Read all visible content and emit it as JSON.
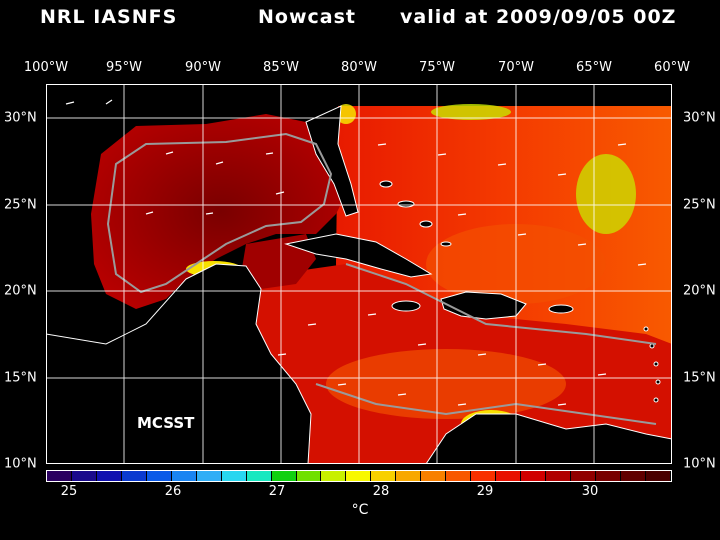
{
  "header": {
    "source": "NRL IASNFS",
    "product": "Nowcast",
    "valid": "valid at 2009/09/05 00Z"
  },
  "map": {
    "longitude_labels": [
      "100°W",
      "95°W",
      "90°W",
      "85°W",
      "80°W",
      "75°W",
      "70°W",
      "65°W",
      "60°W"
    ],
    "latitude_labels": [
      "30°N",
      "25°N",
      "20°N",
      "15°N",
      "10°N"
    ],
    "dataset_label": "MCSST",
    "colors": {
      "land": "#000000",
      "grid": "#ffffff",
      "contour": "#9a9a9a",
      "coast": "#ffffff"
    }
  },
  "colorbar": {
    "ticks": [
      "25",
      "26",
      "27",
      "28",
      "29",
      "30"
    ],
    "unit": "°C",
    "colors": [
      "#2a0060",
      "#1a0a8c",
      "#1010b0",
      "#0a3ad0",
      "#0a5ae8",
      "#1a84f2",
      "#30aef6",
      "#28d6f0",
      "#18e8c0",
      "#10d010",
      "#70e000",
      "#c8f000",
      "#f8f800",
      "#f8d000",
      "#f8a800",
      "#f88000",
      "#f85800",
      "#f83000",
      "#e81000",
      "#d00000",
      "#b00000",
      "#900000",
      "#780000",
      "#600000",
      "#4a0000"
    ]
  }
}
